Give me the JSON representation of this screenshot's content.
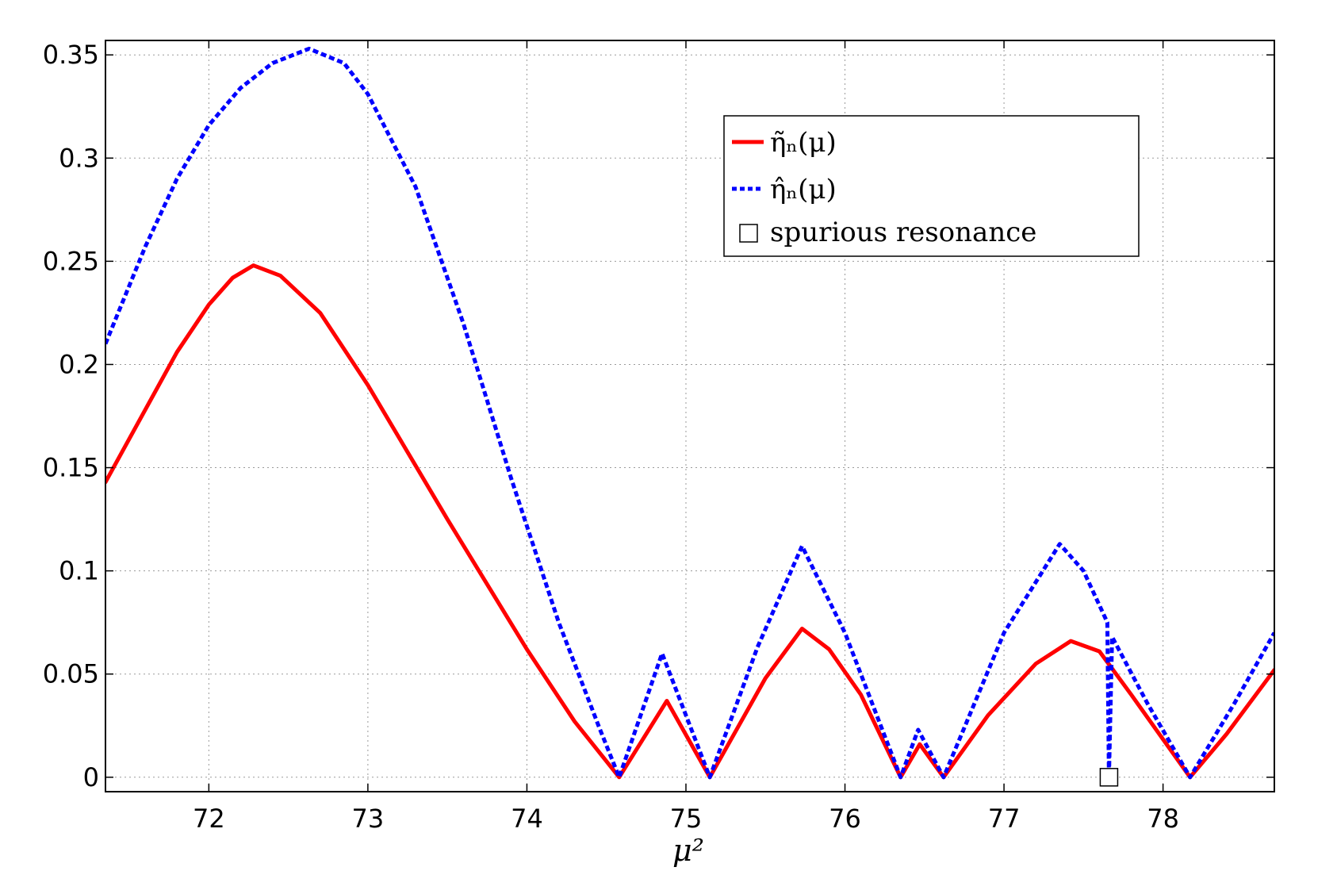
{
  "chart_data": {
    "type": "line",
    "xlabel": "μ²",
    "xlim": [
      71.35,
      78.7
    ],
    "ylim": [
      -0.007,
      0.357
    ],
    "grid": true,
    "legend_position": "top-right",
    "xticks": [
      72,
      73,
      74,
      75,
      76,
      77,
      78
    ],
    "yticks": [
      0,
      0.05,
      0.1,
      0.15,
      0.2,
      0.25,
      0.3,
      0.35
    ],
    "xtick_labels": [
      "72",
      "73",
      "74",
      "75",
      "76",
      "77",
      "78"
    ],
    "ytick_labels": [
      "0",
      "0.05",
      "0.1",
      "0.15",
      "0.2",
      "0.25",
      "0.3",
      "0.35"
    ],
    "series": [
      {
        "name": "η̃ₙ(μ)",
        "style": "solid",
        "color": "#ff0000",
        "points": [
          [
            71.35,
            0.143
          ],
          [
            71.6,
            0.178
          ],
          [
            71.8,
            0.206
          ],
          [
            72.0,
            0.229
          ],
          [
            72.15,
            0.242
          ],
          [
            72.28,
            0.248
          ],
          [
            72.45,
            0.243
          ],
          [
            72.7,
            0.225
          ],
          [
            73.0,
            0.19
          ],
          [
            73.5,
            0.125
          ],
          [
            74.0,
            0.062
          ],
          [
            74.3,
            0.027
          ],
          [
            74.58,
            0.0
          ],
          [
            74.88,
            0.037
          ],
          [
            75.15,
            0.0
          ],
          [
            75.5,
            0.048
          ],
          [
            75.73,
            0.072
          ],
          [
            75.9,
            0.062
          ],
          [
            76.1,
            0.04
          ],
          [
            76.35,
            0.0
          ],
          [
            76.47,
            0.016
          ],
          [
            76.62,
            0.0
          ],
          [
            76.9,
            0.03
          ],
          [
            77.2,
            0.055
          ],
          [
            77.42,
            0.066
          ],
          [
            77.6,
            0.061
          ],
          [
            77.8,
            0.04
          ],
          [
            78.17,
            0.0
          ],
          [
            78.4,
            0.021
          ],
          [
            78.7,
            0.052
          ]
        ]
      },
      {
        "name": "η̂ₙ(μ)",
        "style": "dotted",
        "color": "#0000ff",
        "points": [
          [
            71.35,
            0.21
          ],
          [
            71.6,
            0.257
          ],
          [
            71.8,
            0.29
          ],
          [
            72.0,
            0.316
          ],
          [
            72.2,
            0.334
          ],
          [
            72.4,
            0.346
          ],
          [
            72.63,
            0.353
          ],
          [
            72.85,
            0.346
          ],
          [
            73.0,
            0.331
          ],
          [
            73.3,
            0.286
          ],
          [
            73.6,
            0.22
          ],
          [
            73.9,
            0.145
          ],
          [
            74.2,
            0.075
          ],
          [
            74.45,
            0.025
          ],
          [
            74.58,
            0.0
          ],
          [
            74.85,
            0.06
          ],
          [
            75.15,
            0.0
          ],
          [
            75.45,
            0.063
          ],
          [
            75.73,
            0.112
          ],
          [
            76.0,
            0.07
          ],
          [
            76.35,
            0.0
          ],
          [
            76.46,
            0.023
          ],
          [
            76.62,
            0.0
          ],
          [
            77.0,
            0.07
          ],
          [
            77.35,
            0.113
          ],
          [
            77.5,
            0.1
          ],
          [
            77.65,
            0.075
          ],
          [
            77.66,
            0.0
          ],
          [
            77.68,
            0.068
          ],
          [
            77.9,
            0.036
          ],
          [
            78.17,
            0.0
          ],
          [
            78.45,
            0.036
          ],
          [
            78.7,
            0.07
          ]
        ]
      }
    ],
    "markers": [
      {
        "name": "spurious resonance",
        "x": 77.66,
        "y": 0.0,
        "shape": "square"
      }
    ],
    "legend": {
      "entries": [
        "η̃ₙ(μ)",
        "η̂ₙ(μ)",
        "spurious resonance"
      ]
    }
  }
}
